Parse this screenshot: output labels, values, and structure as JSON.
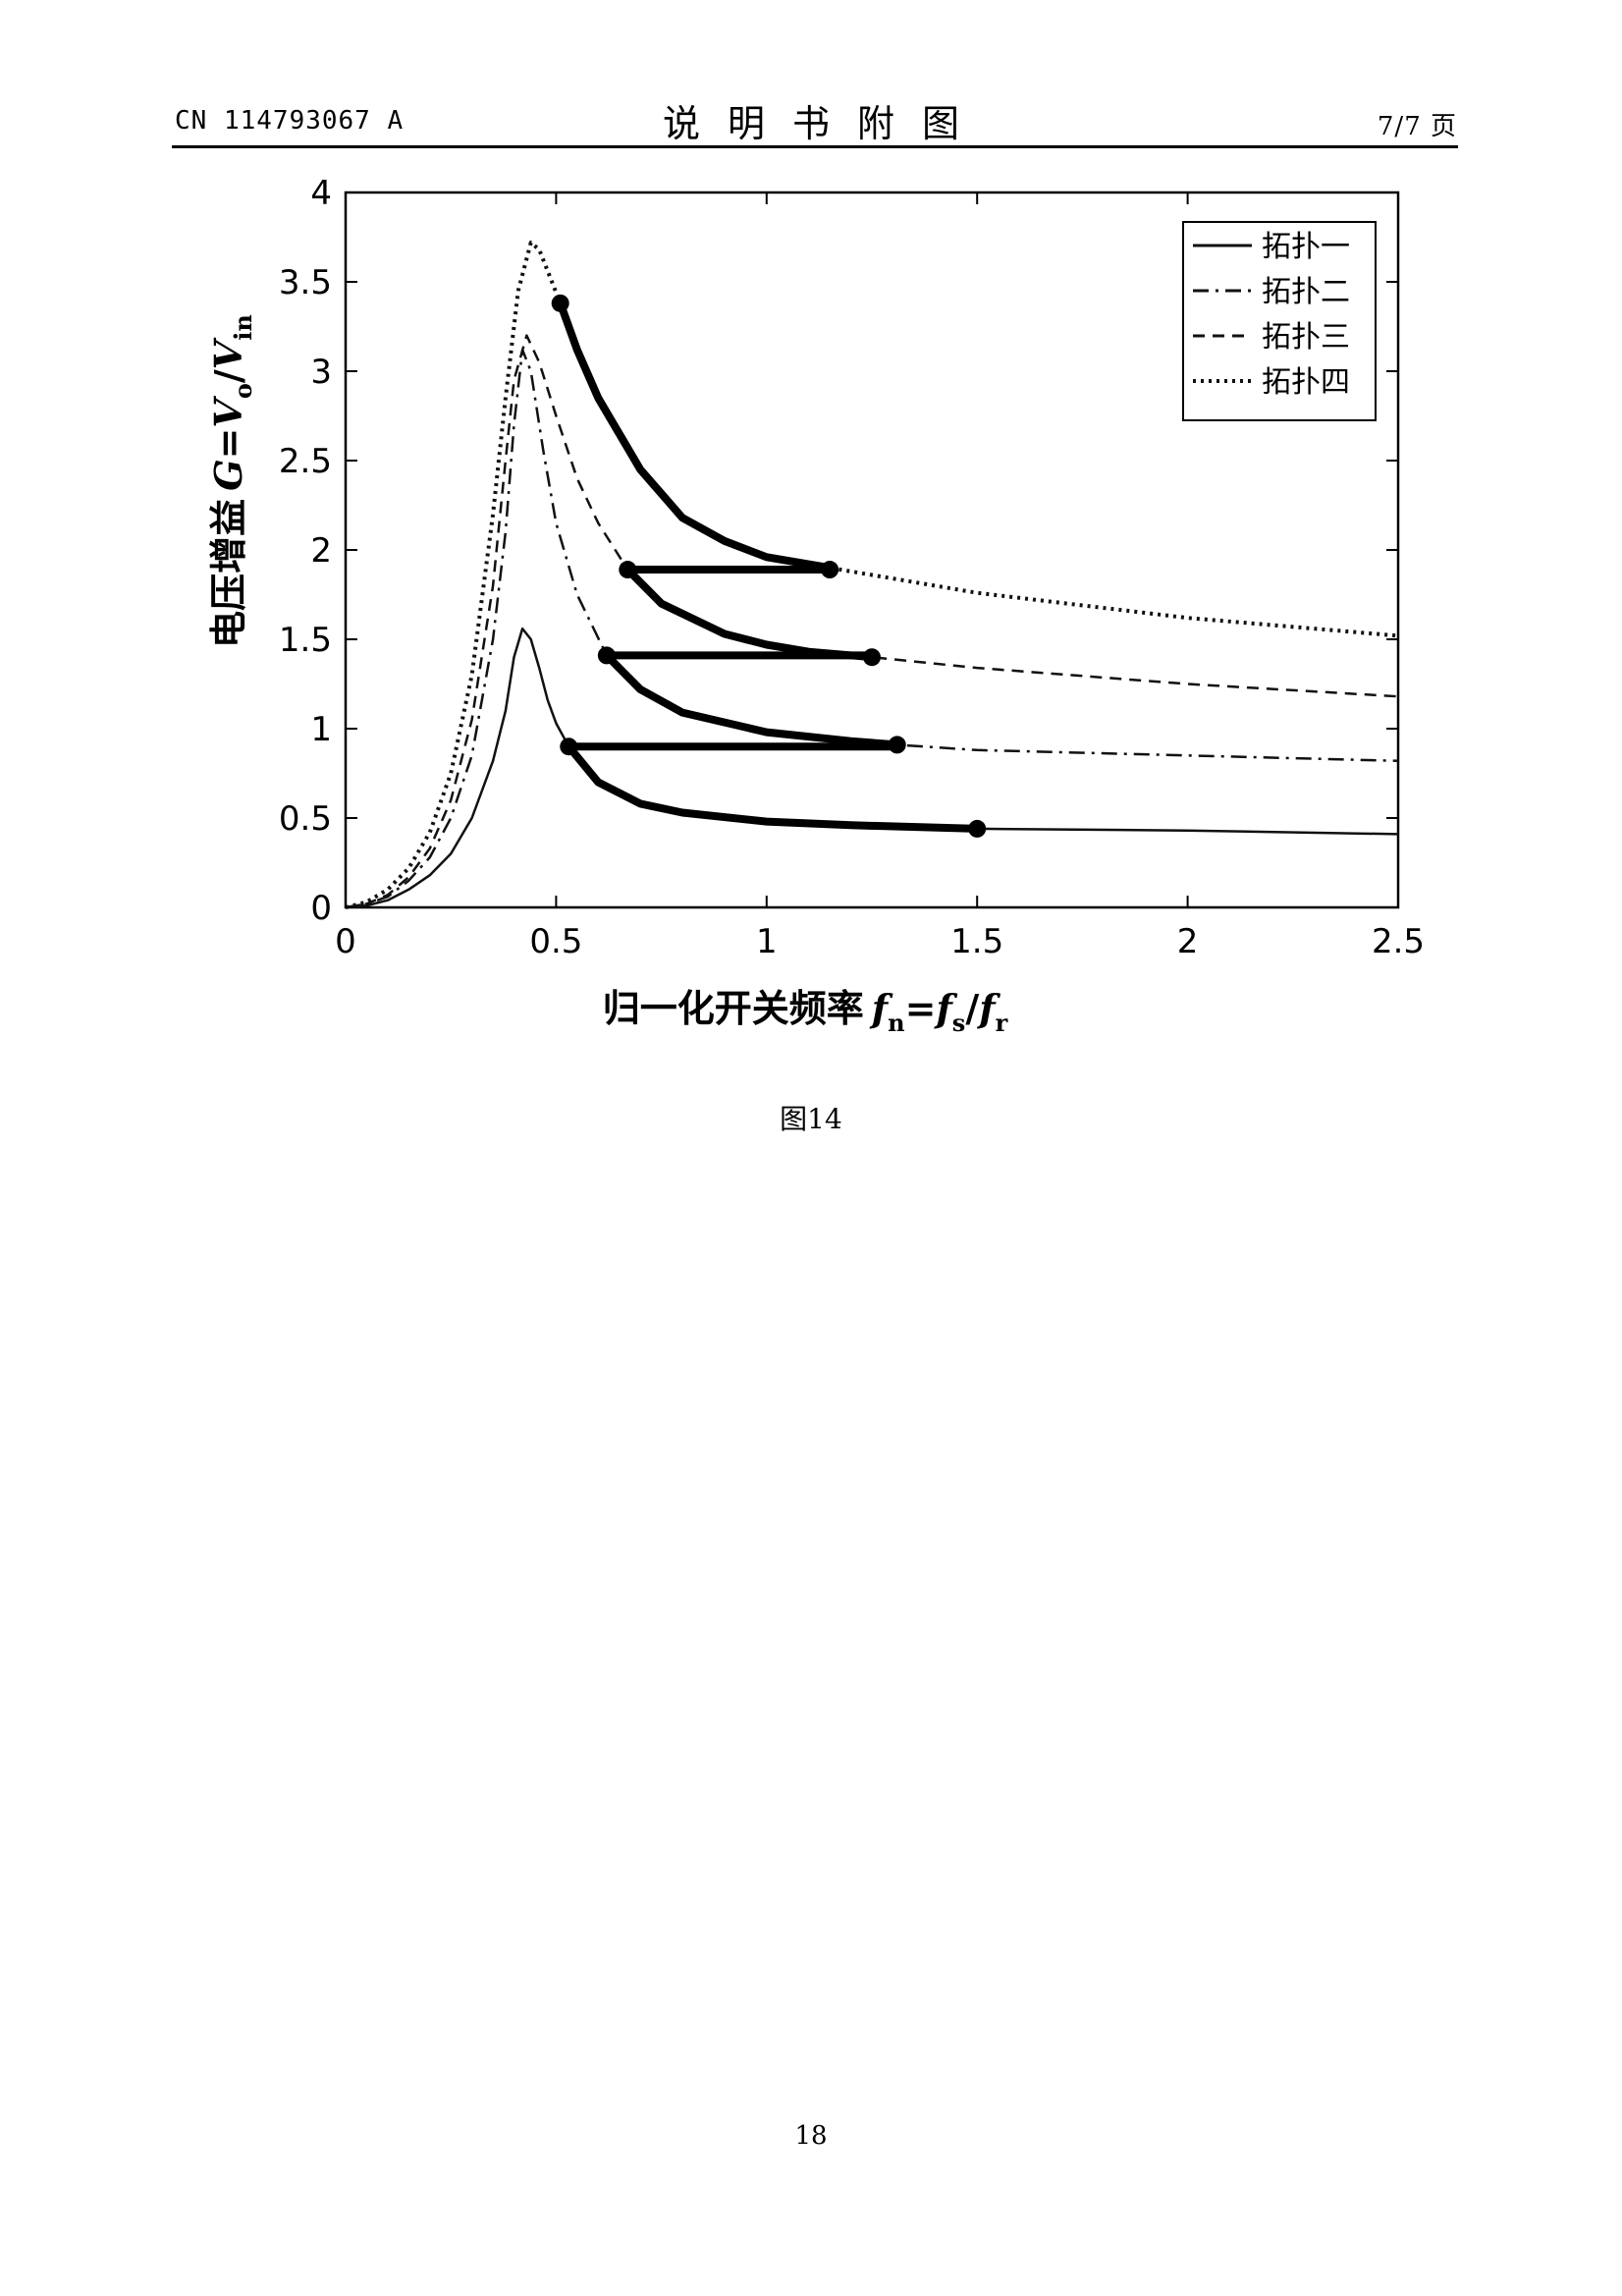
{
  "header": {
    "left": "CN 114793067 A",
    "title": "说明书附图",
    "right": "7/7 页"
  },
  "figure": {
    "caption": "图14"
  },
  "page_number": "18",
  "chart_data": {
    "type": "line",
    "title": "",
    "xlabel": "归一化开关频率 f_n=f_s/f_r",
    "ylabel": "电压增益 G=V_o/V_in",
    "xlabel_parts": {
      "text": "归一化开关频率",
      "f1": "f",
      "s1": "n",
      "eq": "=",
      "f2": "f",
      "s2": "s",
      "sl": "/",
      "f3": "f",
      "s3": "r"
    },
    "ylabel_parts": {
      "text": "电压增益",
      "g": "G",
      "eq": "=",
      "v1": "V",
      "s1": "o",
      "sl": "/",
      "v2": "V",
      "s2": "in"
    },
    "xlim": [
      0,
      2.5
    ],
    "ylim": [
      0,
      4
    ],
    "xticks": [
      0,
      0.5,
      1,
      1.5,
      2,
      2.5
    ],
    "yticks": [
      0,
      0.5,
      1,
      1.5,
      2,
      2.5,
      3,
      3.5,
      4
    ],
    "xtick_labels": [
      "0",
      "0.5",
      "1",
      "1.5",
      "2",
      "2.5"
    ],
    "ytick_labels": [
      "0",
      "0.5",
      "1",
      "1.5",
      "2",
      "2.5",
      "3",
      "3.5",
      "4"
    ],
    "grid": false,
    "legend_position": "top-right",
    "series": [
      {
        "name": "拓扑一",
        "dash": "solid",
        "color": "#111111",
        "points": [
          [
            0,
            0
          ],
          [
            0.05,
            0.01
          ],
          [
            0.1,
            0.04
          ],
          [
            0.15,
            0.1
          ],
          [
            0.2,
            0.18
          ],
          [
            0.25,
            0.3
          ],
          [
            0.3,
            0.5
          ],
          [
            0.35,
            0.82
          ],
          [
            0.38,
            1.1
          ],
          [
            0.4,
            1.4
          ],
          [
            0.42,
            1.56
          ],
          [
            0.44,
            1.5
          ],
          [
            0.46,
            1.34
          ],
          [
            0.48,
            1.16
          ],
          [
            0.5,
            1.03
          ],
          [
            0.53,
            0.9
          ],
          [
            0.6,
            0.7
          ],
          [
            0.7,
            0.58
          ],
          [
            0.8,
            0.53
          ],
          [
            1.0,
            0.48
          ],
          [
            1.2,
            0.46
          ],
          [
            1.5,
            0.44
          ],
          [
            2.0,
            0.43
          ],
          [
            2.5,
            0.41
          ]
        ]
      },
      {
        "name": "拓扑二",
        "dash": "dashdot",
        "color": "#111111",
        "points": [
          [
            0,
            0
          ],
          [
            0.05,
            0.02
          ],
          [
            0.1,
            0.06
          ],
          [
            0.15,
            0.15
          ],
          [
            0.2,
            0.28
          ],
          [
            0.25,
            0.5
          ],
          [
            0.3,
            0.85
          ],
          [
            0.35,
            1.5
          ],
          [
            0.38,
            2.1
          ],
          [
            0.4,
            2.7
          ],
          [
            0.42,
            3.12
          ],
          [
            0.44,
            3.0
          ],
          [
            0.47,
            2.55
          ],
          [
            0.5,
            2.15
          ],
          [
            0.55,
            1.75
          ],
          [
            0.62,
            1.41
          ],
          [
            0.7,
            1.22
          ],
          [
            0.8,
            1.09
          ],
          [
            1.0,
            0.98
          ],
          [
            1.2,
            0.93
          ],
          [
            1.31,
            0.91
          ],
          [
            1.5,
            0.88
          ],
          [
            2.0,
            0.85
          ],
          [
            2.5,
            0.82
          ]
        ]
      },
      {
        "name": "拓扑三",
        "dash": "dashed",
        "color": "#111111",
        "points": [
          [
            0,
            0
          ],
          [
            0.05,
            0.02
          ],
          [
            0.1,
            0.07
          ],
          [
            0.15,
            0.17
          ],
          [
            0.2,
            0.33
          ],
          [
            0.25,
            0.6
          ],
          [
            0.3,
            1.05
          ],
          [
            0.35,
            1.8
          ],
          [
            0.38,
            2.5
          ],
          [
            0.4,
            2.95
          ],
          [
            0.43,
            3.2
          ],
          [
            0.46,
            3.05
          ],
          [
            0.5,
            2.75
          ],
          [
            0.55,
            2.4
          ],
          [
            0.6,
            2.15
          ],
          [
            0.67,
            1.89
          ],
          [
            0.75,
            1.7
          ],
          [
            0.9,
            1.53
          ],
          [
            1.0,
            1.47
          ],
          [
            1.1,
            1.43
          ],
          [
            1.25,
            1.4
          ],
          [
            1.5,
            1.34
          ],
          [
            2.0,
            1.25
          ],
          [
            2.5,
            1.18
          ]
        ]
      },
      {
        "name": "拓扑四",
        "dash": "dotted",
        "color": "#111111",
        "points": [
          [
            0,
            0
          ],
          [
            0.05,
            0.03
          ],
          [
            0.1,
            0.1
          ],
          [
            0.15,
            0.22
          ],
          [
            0.2,
            0.42
          ],
          [
            0.25,
            0.75
          ],
          [
            0.3,
            1.3
          ],
          [
            0.35,
            2.2
          ],
          [
            0.38,
            2.85
          ],
          [
            0.41,
            3.45
          ],
          [
            0.44,
            3.72
          ],
          [
            0.46,
            3.68
          ],
          [
            0.51,
            3.38
          ],
          [
            0.55,
            3.12
          ],
          [
            0.6,
            2.85
          ],
          [
            0.7,
            2.45
          ],
          [
            0.8,
            2.18
          ],
          [
            0.9,
            2.05
          ],
          [
            1.0,
            1.96
          ],
          [
            1.15,
            1.9
          ],
          [
            1.5,
            1.76
          ],
          [
            2.0,
            1.62
          ],
          [
            2.5,
            1.52
          ]
        ]
      }
    ],
    "highlight_segments": [
      {
        "series": "拓扑一",
        "from": 0.53,
        "to": 1.5
      },
      {
        "series": "拓扑二",
        "from": 0.62,
        "to": 1.31
      },
      {
        "series": "拓扑三",
        "from": 0.67,
        "to": 1.25
      },
      {
        "series": "拓扑四",
        "from": 0.51,
        "to": 1.15
      }
    ],
    "connector_lines": [
      {
        "x": [
          0.53,
          1.31
        ],
        "y": 0.9
      },
      {
        "x": [
          0.62,
          1.25
        ],
        "y": 1.41
      },
      {
        "x": [
          0.67,
          1.15
        ],
        "y": 1.89
      }
    ],
    "markers": [
      [
        0.51,
        3.38
      ],
      [
        0.67,
        1.89
      ],
      [
        1.15,
        1.89
      ],
      [
        0.62,
        1.41
      ],
      [
        1.25,
        1.4
      ],
      [
        0.53,
        0.9
      ],
      [
        1.31,
        0.91
      ],
      [
        1.5,
        0.44
      ]
    ]
  }
}
